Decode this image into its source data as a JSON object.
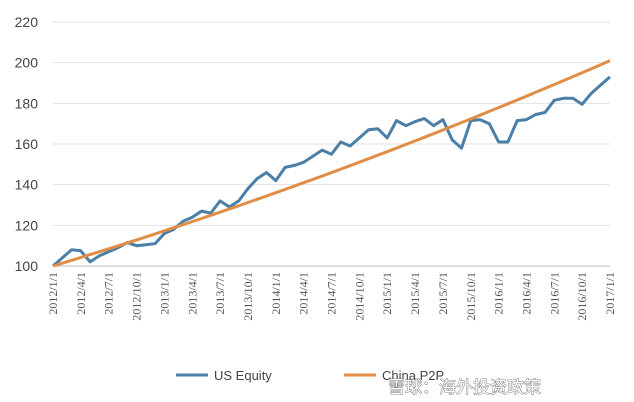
{
  "chart_data": {
    "type": "line",
    "title": "",
    "xlabel": "",
    "ylabel": "",
    "ylim": [
      100,
      220
    ],
    "yticks": [
      100,
      120,
      140,
      160,
      180,
      200,
      220
    ],
    "grid": "horizontal",
    "legend_position": "bottom",
    "x_tick_labels": [
      "2012/1/1",
      "2012/4/1",
      "2012/7/1",
      "2012/10/1",
      "2013/1/1",
      "2013/4/1",
      "2013/7/1",
      "2013/10/1",
      "2014/1/1",
      "2014/4/1",
      "2014/7/1",
      "2014/10/1",
      "2015/1/1",
      "2015/4/1",
      "2015/7/1",
      "2015/10/1",
      "2016/1/1",
      "2016/4/1",
      "2016/7/1",
      "2016/10/1",
      "2017/1/1"
    ],
    "series": [
      {
        "name": "US Equity",
        "color": "#4a7fa8",
        "values": [
          100,
          104,
          108,
          107.5,
          102,
          105,
          107,
          109,
          111.5,
          110,
          110.5,
          111,
          116,
          118,
          122,
          124,
          127,
          126,
          132,
          129,
          132,
          138,
          143,
          146,
          142,
          148.5,
          149.5,
          151,
          154,
          157,
          155,
          161,
          159,
          163,
          167,
          167.5,
          163,
          171.5,
          169,
          171,
          172.5,
          169,
          172,
          162,
          158,
          171.5,
          172,
          170,
          161,
          161,
          171.5,
          172,
          174.5,
          175.5,
          181.5,
          182.5,
          182.5,
          179.5,
          185,
          189,
          193
        ]
      },
      {
        "name": "China P2P",
        "color": "#e08d48",
        "start": 100,
        "end": 201
      }
    ]
  },
  "watermark": "雪球：海外投资政策"
}
